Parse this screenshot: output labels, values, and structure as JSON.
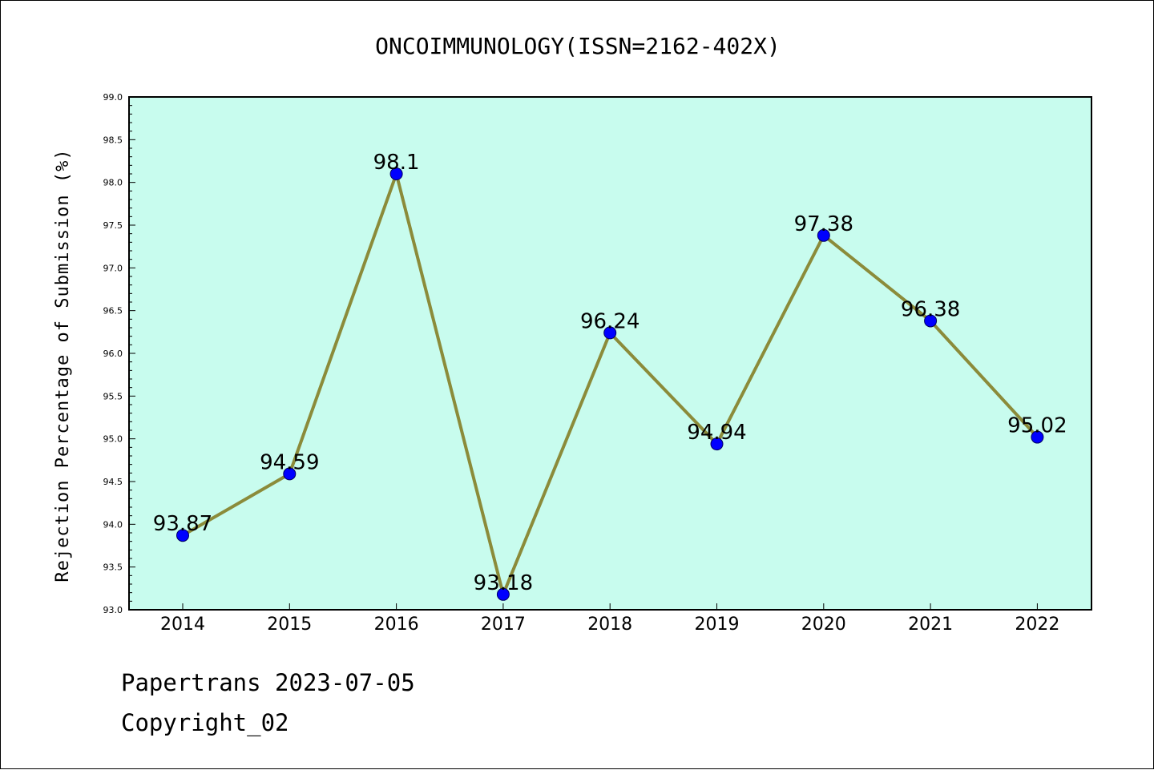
{
  "chart_data": {
    "type": "line",
    "title": "ONCOIMMUNOLOGY(ISSN=2162-402X)",
    "xlabel": "",
    "ylabel": "Rejection Percentage of Submission (%)",
    "x": [
      "2014",
      "2015",
      "2016",
      "2017",
      "2018",
      "2019",
      "2020",
      "2021",
      "2022"
    ],
    "values": [
      93.87,
      94.59,
      98.1,
      93.18,
      96.24,
      94.94,
      97.38,
      96.38,
      95.02
    ],
    "data_labels": [
      "93.87",
      "94.59",
      "98.1",
      "93.18",
      "96.24",
      "94.94",
      "97.38",
      "96.38",
      "95.02"
    ],
    "ylim": [
      93.0,
      99.0
    ],
    "yticks": [
      "93.0",
      "93.5",
      "94.0",
      "94.5",
      "95.0",
      "95.5",
      "96.0",
      "96.5",
      "97.0",
      "97.5",
      "98.0",
      "98.5",
      "99.0"
    ],
    "grid": false,
    "legend": "none",
    "colors": {
      "plot_background": "#c8fcee",
      "line": "#8b8b3a",
      "marker": "#0000ff",
      "axis": "#000000"
    }
  },
  "footer": {
    "source": "Papertrans 2023-07-05",
    "copyright": "Copyright_02"
  }
}
